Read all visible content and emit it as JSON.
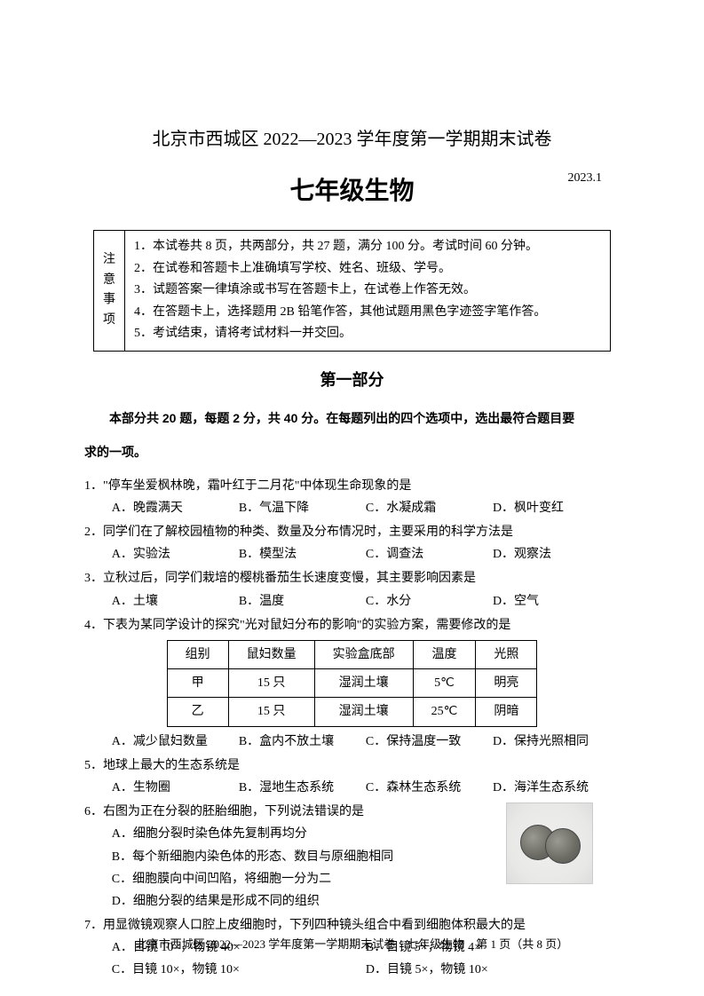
{
  "header": {
    "title": "北京市西城区 2022—2023 学年度第一学期期末试卷",
    "subject": "七年级生物",
    "date": "2023.1"
  },
  "notice": {
    "label_chars": [
      "注",
      "意",
      "事",
      "项"
    ],
    "items": [
      "1．本试卷共 8 页，共两部分，共 27 题，满分 100 分。考试时间 60 分钟。",
      "2．在试卷和答题卡上准确填写学校、姓名、班级、学号。",
      "3．试题答案一律填涂或书写在答题卡上，在试卷上作答无效。",
      "4．在答题卡上，选择题用 2B 铅笔作答，其他试题用黑色字迹签字笔作答。",
      "5．考试结束，请将考试材料一并交回。"
    ]
  },
  "section": {
    "title": "第一部分",
    "intro_prefix": "本部分共 20 题，每题 2 分，共 40 分。在每题列出的四个选项中，选出最符合题目要",
    "intro_suffix": "求的一项。"
  },
  "q1": {
    "stem": "1．\"停车坐爱枫林晚，霜叶红于二月花\"中体现生命现象的是",
    "A": "A．晚霞满天",
    "B": "B．气温下降",
    "C": "C．水凝成霜",
    "D": "D．枫叶变红"
  },
  "q2": {
    "stem": "2．同学们在了解校园植物的种类、数量及分布情况时，主要采用的科学方法是",
    "A": "A．实验法",
    "B": "B．模型法",
    "C": "C．调查法",
    "D": "D．观察法"
  },
  "q3": {
    "stem": "3．立秋过后，同学们栽培的樱桃番茄生长速度变慢，其主要影响因素是",
    "A": "A．土壤",
    "B": "B．温度",
    "C": "C．水分",
    "D": "D．空气"
  },
  "q4": {
    "stem": "4．下表为某同学设计的探究\"光对鼠妇分布的影响\"的实验方案，需要修改的是",
    "table": {
      "headers": [
        "组别",
        "鼠妇数量",
        "实验盒底部",
        "温度",
        "光照"
      ],
      "rows": [
        [
          "甲",
          "15 只",
          "湿润土壤",
          "5℃",
          "明亮"
        ],
        [
          "乙",
          "15 只",
          "湿润土壤",
          "25℃",
          "阴暗"
        ]
      ]
    },
    "A": "A．减少鼠妇数量",
    "B": "B．盒内不放土壤",
    "C": "C．保持温度一致",
    "D": "D．保持光照相同"
  },
  "q5": {
    "stem": "5．地球上最大的生态系统是",
    "A": "A．生物圈",
    "B": "B．湿地生态系统",
    "C": "C．森林生态系统",
    "D": "D．海洋生态系统"
  },
  "q6": {
    "stem": "6．右图为正在分裂的胚胎细胞，下列说法错误的是",
    "A": "A．细胞分裂时染色体先复制再均分",
    "B": "B．每个新细胞内染色体的形态、数目与原细胞相同",
    "C": "C．细胞膜向中间凹陷，将细胞一分为二",
    "D": "D．细胞分裂的结果是形成不同的组织"
  },
  "q7": {
    "stem": "7．用显微镜观察人口腔上皮细胞时，下列四种镜头组合中看到细胞体积最大的是",
    "A": "A．目镜 10×，物镜 40×",
    "B": "B．目镜 5×，物镜 4×",
    "C": "C．目镜 10×，物镜 10×",
    "D": "D．目镜 5×，物镜 10×"
  },
  "footer": {
    "text": "北京市西城区 2022—2023 学年度第一学期期末试卷　七年级生物　第 1 页（共 8 页）"
  }
}
